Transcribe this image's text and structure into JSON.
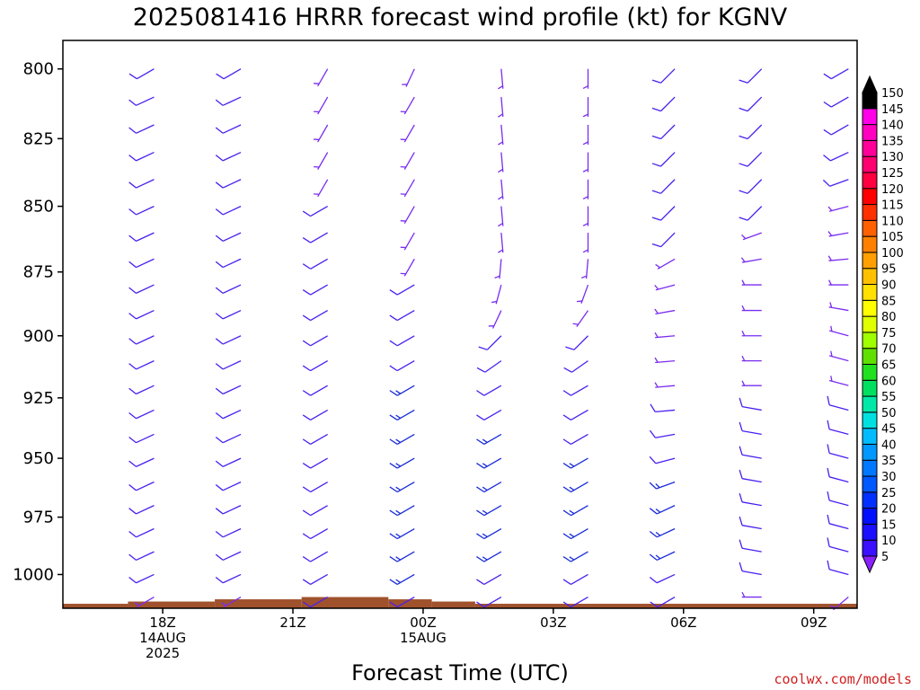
{
  "chart_data": {
    "type": "wind-barb-time-height",
    "title": "2025081416 HRRR forecast wind profile (kt) for KGNV",
    "xlabel": "Forecast Time (UTC)",
    "ylabel": "",
    "y_axis": {
      "scale": "pressure (inverted, log-like)",
      "range_hpa": [
        790,
        1015
      ],
      "ticks": [
        800,
        825,
        850,
        875,
        900,
        925,
        950,
        975,
        1000
      ]
    },
    "x_axis": {
      "range_hours_from_init": [
        -0.3,
        18.0
      ],
      "ticks": [
        {
          "hour": 2,
          "line1": "18Z",
          "line2": "14AUG",
          "line3": "2025"
        },
        {
          "hour": 5,
          "line1": "21Z",
          "line2": "",
          "line3": ""
        },
        {
          "hour": 8,
          "line1": "00Z",
          "line2": "15AUG",
          "line3": ""
        },
        {
          "hour": 11,
          "line1": "03Z",
          "line2": "",
          "line3": ""
        },
        {
          "hour": 14,
          "line1": "06Z",
          "line2": "",
          "line3": ""
        },
        {
          "hour": 17,
          "line1": "09Z",
          "line2": "",
          "line3": ""
        }
      ]
    },
    "barb_columns_hours": [
      1.8,
      3.8,
      5.8,
      7.8,
      9.8,
      11.8,
      13.8,
      15.8,
      17.8
    ],
    "barb_levels_hpa": [
      800,
      810,
      820,
      830,
      840,
      850,
      860,
      870,
      880,
      890,
      900,
      910,
      920,
      930,
      940,
      950,
      960,
      970,
      980,
      990,
      1000,
      1010
    ],
    "wind_direction_deg": [
      [
        240,
        245,
        245,
        245,
        245,
        245,
        245,
        245,
        245,
        245,
        245,
        245,
        245,
        245,
        245,
        245,
        245,
        245,
        245,
        245,
        245,
        240
      ],
      [
        240,
        245,
        245,
        245,
        245,
        245,
        245,
        245,
        245,
        245,
        245,
        245,
        245,
        245,
        245,
        245,
        245,
        245,
        245,
        245,
        245,
        240
      ],
      [
        210,
        210,
        210,
        210,
        210,
        240,
        240,
        240,
        240,
        240,
        240,
        240,
        240,
        240,
        240,
        240,
        240,
        240,
        240,
        240,
        240,
        240
      ],
      [
        205,
        210,
        210,
        210,
        210,
        210,
        210,
        210,
        240,
        240,
        240,
        240,
        240,
        240,
        240,
        240,
        240,
        240,
        240,
        240,
        240,
        240
      ],
      [
        175,
        175,
        175,
        175,
        175,
        175,
        175,
        185,
        195,
        205,
        225,
        235,
        240,
        240,
        240,
        240,
        240,
        240,
        240,
        240,
        240,
        240
      ],
      [
        180,
        180,
        180,
        180,
        180,
        180,
        180,
        185,
        200,
        215,
        225,
        235,
        240,
        240,
        240,
        240,
        240,
        240,
        240,
        240,
        240,
        240
      ],
      [
        225,
        225,
        225,
        225,
        225,
        225,
        225,
        240,
        255,
        260,
        265,
        265,
        265,
        265,
        260,
        255,
        250,
        245,
        245,
        245,
        245,
        240
      ],
      [
        225,
        225,
        225,
        225,
        225,
        225,
        250,
        260,
        270,
        270,
        270,
        270,
        270,
        280,
        280,
        280,
        280,
        280,
        280,
        280,
        280,
        270
      ],
      [
        240,
        240,
        240,
        245,
        250,
        255,
        260,
        265,
        270,
        280,
        285,
        285,
        285,
        285,
        285,
        285,
        285,
        285,
        285,
        285,
        285,
        230
      ]
    ],
    "wind_speed_kt": [
      [
        10,
        10,
        10,
        10,
        10,
        10,
        10,
        10,
        10,
        10,
        10,
        10,
        10,
        10,
        10,
        10,
        10,
        10,
        10,
        10,
        10,
        5
      ],
      [
        10,
        10,
        10,
        10,
        10,
        10,
        10,
        10,
        10,
        10,
        10,
        10,
        10,
        10,
        10,
        10,
        10,
        10,
        10,
        10,
        10,
        5
      ],
      [
        5,
        5,
        5,
        5,
        5,
        10,
        10,
        10,
        10,
        10,
        10,
        10,
        10,
        10,
        10,
        10,
        10,
        10,
        10,
        10,
        10,
        10
      ],
      [
        5,
        5,
        5,
        5,
        5,
        5,
        5,
        5,
        10,
        10,
        10,
        10,
        15,
        15,
        15,
        15,
        15,
        15,
        15,
        15,
        15,
        10
      ],
      [
        5,
        5,
        5,
        5,
        5,
        5,
        5,
        5,
        5,
        5,
        10,
        10,
        10,
        10,
        15,
        15,
        15,
        15,
        15,
        15,
        10,
        10
      ],
      [
        5,
        5,
        5,
        5,
        5,
        5,
        5,
        5,
        5,
        5,
        10,
        10,
        10,
        10,
        10,
        15,
        15,
        15,
        15,
        15,
        10,
        10
      ],
      [
        10,
        10,
        10,
        10,
        10,
        10,
        10,
        5,
        5,
        5,
        5,
        5,
        5,
        10,
        10,
        10,
        15,
        15,
        15,
        15,
        10,
        10
      ],
      [
        10,
        10,
        10,
        10,
        10,
        10,
        5,
        5,
        5,
        5,
        5,
        5,
        5,
        10,
        10,
        10,
        10,
        10,
        10,
        10,
        10,
        5
      ],
      [
        10,
        10,
        10,
        10,
        10,
        5,
        5,
        5,
        5,
        5,
        5,
        5,
        5,
        10,
        10,
        10,
        10,
        10,
        10,
        10,
        10,
        5
      ]
    ],
    "terrain": {
      "color": "#a0522d",
      "segments": [
        {
          "from_hour": -0.3,
          "to_hour": 1.2,
          "surface_hpa": 1013
        },
        {
          "from_hour": 1.2,
          "to_hour": 3.2,
          "surface_hpa": 1012
        },
        {
          "from_hour": 3.2,
          "to_hour": 5.2,
          "surface_hpa": 1011
        },
        {
          "from_hour": 5.2,
          "to_hour": 7.2,
          "surface_hpa": 1010
        },
        {
          "from_hour": 7.2,
          "to_hour": 8.2,
          "surface_hpa": 1011
        },
        {
          "from_hour": 8.2,
          "to_hour": 9.2,
          "surface_hpa": 1012
        },
        {
          "from_hour": 9.2,
          "to_hour": 18.0,
          "surface_hpa": 1013
        }
      ]
    },
    "colorbar": {
      "ticks": [
        5,
        10,
        15,
        20,
        25,
        30,
        35,
        40,
        45,
        50,
        55,
        60,
        65,
        70,
        75,
        80,
        85,
        90,
        95,
        100,
        105,
        110,
        115,
        120,
        125,
        130,
        135,
        140,
        145,
        150
      ],
      "colors": [
        "#5a00ff",
        "#3a10ff",
        "#1a10ff",
        "#0010ff",
        "#0030ff",
        "#0058ff",
        "#0078ff",
        "#0098ff",
        "#00bcff",
        "#00e0e0",
        "#00e8a8",
        "#00e060",
        "#20e020",
        "#60e000",
        "#a0ff00",
        "#e0ff00",
        "#ffff00",
        "#ffe000",
        "#ffc000",
        "#ffa000",
        "#ff8000",
        "#ff6000",
        "#ff3000",
        "#ff0000",
        "#ff0040",
        "#ff0070",
        "#ff0098",
        "#ff00c0",
        "#ff00e8",
        "#000000"
      ],
      "low_arrow_color": "#8a20ff",
      "high_arrow_color": "#000000"
    }
  },
  "footer": {
    "credit": "coolwx.com/models"
  }
}
